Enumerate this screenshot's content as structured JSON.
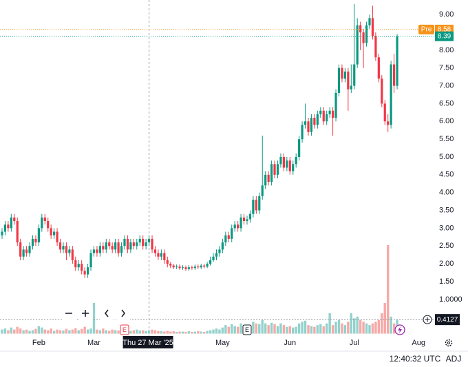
{
  "chart_data": {
    "type": "candlestick",
    "up_color": "#089981",
    "down_color": "#f23645",
    "volume_up_color": "#92d2cc",
    "volume_down_color": "#f7a9a7",
    "xlim": [
      -0.67,
      141.35
    ],
    "xticks": [
      {
        "value": 12,
        "label": "Feb"
      },
      {
        "value": 30,
        "label": "Mar"
      },
      {
        "value": 72,
        "label": "May"
      },
      {
        "value": 94,
        "label": "Jun"
      },
      {
        "value": 115,
        "label": "Jul"
      },
      {
        "value": 136,
        "label": "Aug"
      }
    ],
    "ylim": [
      -0.03,
      9.41
    ],
    "yticks": [
      {
        "value": 1.5,
        "label": "1.50"
      },
      {
        "value": 2,
        "label": "2.00"
      },
      {
        "value": 2.5,
        "label": "2.50"
      },
      {
        "value": 3,
        "label": "3.00"
      },
      {
        "value": 3.5,
        "label": "3.50"
      },
      {
        "value": 4,
        "label": "4.00"
      },
      {
        "value": 4.5,
        "label": "4.50"
      },
      {
        "value": 5,
        "label": "5.00"
      },
      {
        "value": 5.5,
        "label": "5.50"
      },
      {
        "value": 6,
        "label": "6.00"
      },
      {
        "value": 6.5,
        "label": "6.50"
      },
      {
        "value": 7,
        "label": "7.00"
      },
      {
        "value": 7.5,
        "label": "7.50"
      },
      {
        "value": 8,
        "label": "8.00"
      },
      {
        "value": 9,
        "label": "9.00"
      }
    ],
    "y2lim": [
      -0.07,
      9.8
    ],
    "y2ticks": [
      {
        "value": 1,
        "label": "1.0000"
      }
    ],
    "grid": false,
    "open": [
      2.8,
      2.9,
      3.1,
      3.0,
      3.3,
      3.2,
      2.6,
      2.2,
      2.4,
      2.3,
      2.5,
      2.7,
      2.6,
      3.0,
      3.3,
      3.2,
      3.0,
      2.8,
      2.9,
      2.6,
      2.4,
      2.5,
      2.3,
      2.4,
      2.1,
      1.9,
      2.0,
      1.8,
      1.7,
      1.9,
      2.3,
      2.4,
      2.3,
      2.5,
      2.4,
      2.6,
      2.5,
      2.4,
      2.6,
      2.3,
      2.5,
      2.7,
      2.4,
      2.6,
      2.5,
      2.6,
      2.7,
      2.5,
      2.6,
      2.7,
      2.4,
      2.3,
      2.2,
      2.3,
      2.1,
      2.0,
      1.95,
      1.9,
      1.92,
      1.88,
      1.9,
      1.85,
      1.9,
      1.88,
      1.92,
      1.9,
      1.95,
      1.92,
      2.0,
      2.1,
      2.2,
      2.3,
      2.4,
      2.6,
      2.8,
      2.7,
      3.0,
      3.1,
      3.0,
      3.3,
      3.2,
      3.25,
      3.4,
      3.8,
      3.5,
      3.9,
      4.2,
      4.5,
      4.3,
      4.8,
      4.5,
      4.8,
      5.0,
      4.7,
      4.9,
      4.6,
      4.8,
      5.0,
      5.5,
      5.9,
      6.0,
      5.7,
      6.1,
      5.9,
      6.2,
      6.3,
      6.0,
      6.2,
      6.3,
      6.1,
      6.8,
      7.5,
      7.2,
      7.4,
      6.9,
      7.0,
      7.6,
      8.7,
      8.5,
      8.2,
      8.7,
      8.9,
      8.4,
      7.8,
      7.2,
      6.5,
      6.0,
      5.9,
      7.6,
      7.0
    ],
    "high": [
      3.0,
      3.2,
      3.2,
      3.4,
      3.4,
      3.3,
      2.7,
      2.5,
      2.5,
      2.6,
      2.8,
      2.8,
      3.1,
      3.4,
      3.4,
      3.3,
      3.1,
      3.0,
      3.0,
      2.7,
      2.6,
      2.6,
      2.5,
      2.5,
      2.2,
      2.1,
      2.1,
      1.9,
      2.0,
      2.4,
      2.5,
      2.5,
      2.6,
      2.6,
      2.7,
      2.7,
      2.6,
      2.7,
      2.7,
      2.6,
      2.8,
      2.8,
      2.7,
      2.7,
      2.7,
      2.8,
      2.8,
      2.7,
      2.8,
      2.8,
      2.5,
      2.4,
      2.4,
      2.4,
      2.2,
      2.05,
      2.0,
      1.98,
      1.98,
      1.96,
      1.95,
      1.96,
      1.95,
      1.98,
      1.98,
      2.0,
      2.0,
      2.05,
      2.2,
      2.3,
      2.4,
      2.5,
      2.7,
      2.9,
      2.9,
      3.1,
      3.2,
      3.2,
      3.4,
      3.4,
      3.35,
      3.5,
      3.9,
      3.9,
      4.0,
      5.6,
      4.6,
      4.6,
      4.9,
      4.9,
      4.9,
      5.1,
      5.1,
      5.0,
      5.0,
      4.9,
      5.1,
      5.6,
      6.0,
      6.5,
      6.1,
      6.2,
      6.2,
      6.3,
      6.4,
      6.4,
      6.3,
      6.4,
      6.4,
      6.9,
      7.6,
      7.6,
      7.5,
      7.5,
      7.6,
      9.3,
      8.9,
      8.8,
      8.6,
      8.8,
      9.0,
      9.25,
      8.5,
      7.9,
      7.3,
      6.6,
      6.2,
      7.7,
      7.9,
      8.45
    ],
    "low": [
      2.7,
      2.8,
      2.9,
      2.9,
      3.1,
      2.5,
      2.1,
      2.1,
      2.2,
      2.2,
      2.4,
      2.5,
      2.5,
      2.9,
      3.1,
      2.9,
      2.7,
      2.7,
      2.5,
      2.3,
      2.3,
      2.1,
      2.2,
      2.0,
      1.8,
      1.8,
      1.7,
      1.6,
      1.6,
      1.8,
      2.2,
      2.2,
      2.2,
      2.3,
      2.3,
      2.4,
      2.3,
      2.3,
      2.2,
      2.2,
      2.4,
      2.3,
      2.3,
      2.4,
      2.4,
      2.5,
      2.4,
      2.4,
      2.5,
      2.3,
      2.2,
      2.1,
      2.1,
      2.0,
      1.9,
      1.88,
      1.85,
      1.85,
      1.83,
      1.83,
      1.8,
      1.8,
      1.83,
      1.83,
      1.85,
      1.85,
      1.87,
      1.88,
      1.95,
      2.05,
      2.1,
      2.2,
      2.3,
      2.5,
      2.6,
      2.6,
      2.9,
      2.9,
      2.9,
      3.1,
      3.1,
      3.15,
      3.3,
      3.4,
      3.4,
      3.8,
      4.1,
      4.2,
      4.2,
      4.4,
      4.4,
      4.7,
      4.6,
      4.6,
      4.5,
      4.5,
      4.7,
      4.9,
      5.4,
      5.8,
      5.6,
      5.6,
      5.8,
      5.8,
      6.1,
      5.9,
      5.9,
      6.1,
      5.6,
      6.0,
      6.7,
      7.1,
      7.1,
      6.3,
      6.8,
      6.9,
      7.5,
      8.0,
      7.5,
      8.1,
      8.6,
      8.3,
      7.7,
      7.1,
      6.4,
      5.9,
      5.7,
      5.8,
      6.8,
      6.9
    ],
    "close": [
      2.9,
      3.1,
      3.0,
      3.3,
      3.2,
      2.6,
      2.2,
      2.4,
      2.3,
      2.5,
      2.7,
      2.6,
      3.0,
      3.3,
      3.2,
      3.0,
      2.8,
      2.9,
      2.6,
      2.4,
      2.5,
      2.3,
      2.4,
      2.1,
      1.9,
      2.0,
      1.8,
      1.7,
      1.9,
      2.3,
      2.4,
      2.3,
      2.5,
      2.4,
      2.6,
      2.5,
      2.4,
      2.6,
      2.3,
      2.5,
      2.7,
      2.4,
      2.6,
      2.5,
      2.6,
      2.7,
      2.5,
      2.6,
      2.7,
      2.4,
      2.3,
      2.2,
      2.3,
      2.1,
      2.0,
      1.95,
      1.9,
      1.92,
      1.88,
      1.9,
      1.85,
      1.9,
      1.88,
      1.92,
      1.9,
      1.95,
      1.92,
      2.0,
      2.1,
      2.2,
      2.3,
      2.4,
      2.6,
      2.8,
      2.7,
      3.0,
      3.1,
      3.0,
      3.3,
      3.2,
      3.25,
      3.4,
      3.8,
      3.5,
      3.9,
      4.2,
      4.5,
      4.3,
      4.8,
      4.5,
      4.8,
      5.0,
      4.7,
      4.9,
      4.6,
      4.8,
      5.0,
      5.5,
      5.9,
      6.0,
      5.7,
      6.1,
      5.9,
      6.2,
      6.3,
      6.0,
      6.2,
      6.3,
      6.1,
      6.8,
      7.5,
      7.2,
      7.4,
      6.9,
      7.0,
      7.6,
      8.7,
      8.5,
      8.2,
      8.7,
      8.9,
      8.4,
      7.8,
      7.2,
      6.5,
      6.0,
      5.9,
      7.6,
      7.0,
      8.39
    ],
    "volume": [
      0.12,
      0.15,
      0.1,
      0.18,
      0.12,
      0.2,
      0.15,
      0.1,
      0.12,
      0.08,
      0.1,
      0.14,
      0.22,
      0.18,
      0.12,
      0.1,
      0.15,
      0.08,
      0.12,
      0.1,
      0.09,
      0.14,
      0.1,
      0.12,
      0.16,
      0.1,
      0.14,
      0.2,
      0.12,
      0.15,
      0.9,
      0.12,
      0.1,
      0.15,
      0.1,
      0.08,
      0.12,
      0.1,
      0.09,
      0.1,
      0.12,
      0.1,
      0.08,
      0.1,
      0.12,
      0.09,
      0.1,
      0.08,
      0.1,
      0.12,
      0.1,
      0.08,
      0.07,
      0.06,
      0.08,
      0.06,
      0.07,
      0.05,
      0.06,
      0.06,
      0.05,
      0.07,
      0.05,
      0.06,
      0.07,
      0.06,
      0.05,
      0.08,
      0.1,
      0.12,
      0.15,
      0.12,
      0.18,
      0.25,
      0.2,
      0.28,
      0.22,
      0.2,
      0.3,
      0.22,
      0.18,
      0.25,
      0.35,
      0.3,
      0.28,
      0.4,
      0.3,
      0.25,
      0.32,
      0.28,
      0.22,
      0.3,
      0.25,
      0.2,
      0.22,
      0.18,
      0.2,
      0.3,
      0.35,
      0.38,
      0.25,
      0.22,
      0.2,
      0.25,
      0.28,
      0.22,
      0.3,
      0.6,
      0.25,
      0.35,
      0.4,
      0.3,
      0.25,
      0.35,
      0.6,
      0.45,
      0.5,
      0.4,
      0.35,
      0.3,
      0.25,
      0.3,
      0.35,
      0.4,
      0.6,
      0.9,
      2.6,
      0.5,
      0.3,
      0.4127
    ],
    "premarket": {
      "label": "Pre",
      "value": 8.58
    },
    "crosshair": {
      "label": "Thu 27 Mar '25",
      "x": 48
    },
    "events": [
      {
        "label": "E",
        "x": 40
      },
      {
        "label": "E",
        "x": 80
      }
    ],
    "status": {
      "time": "12:40:32 UTC",
      "adjustment": "ADJ"
    }
  }
}
